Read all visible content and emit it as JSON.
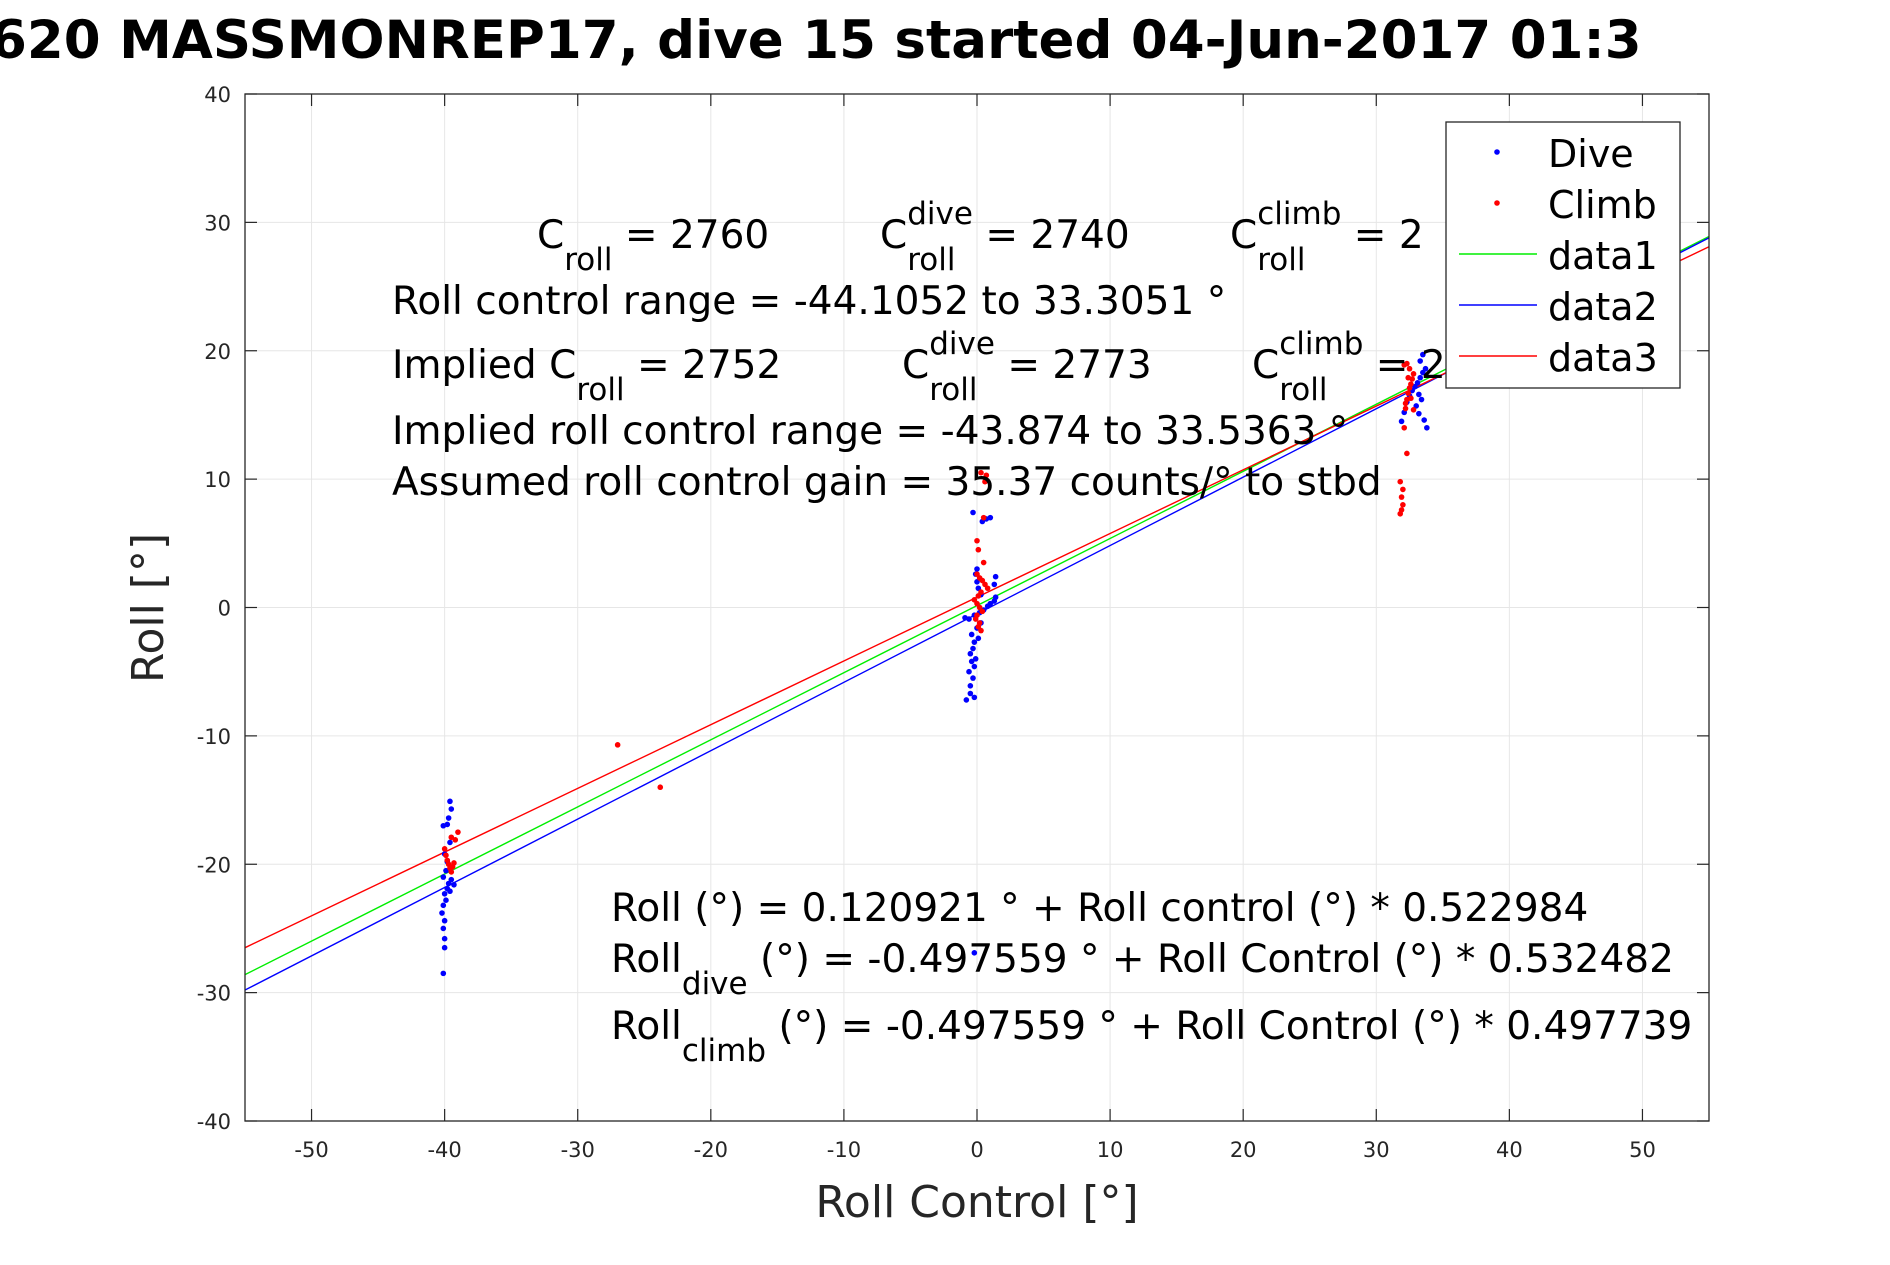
{
  "chart_data": {
    "type": "scatter",
    "title": "620 MASSMONREP17, dive 15 started 04-Jun-2017 01:3",
    "xlabel": "Roll Control [°]",
    "ylabel": "Roll [°]",
    "xlim": [
      -55,
      55
    ],
    "ylim": [
      -40,
      40
    ],
    "xticks": [
      -50,
      -40,
      -30,
      -20,
      -10,
      0,
      10,
      20,
      30,
      40,
      50
    ],
    "yticks": [
      -40,
      -30,
      -20,
      -10,
      0,
      10,
      20,
      30,
      40
    ],
    "grid": true,
    "legend_position": "top-right",
    "colors": {
      "dive": "#0000ff",
      "climb": "#ff0000",
      "data1": "#00ee00",
      "data2": "#0000ff",
      "data3": "#ff0000"
    },
    "series": [
      {
        "name": "Dive",
        "kind": "points",
        "points": [
          [
            -40.1,
            -28.5
          ],
          [
            -40.0,
            -26.5
          ],
          [
            -40.0,
            -25.8
          ],
          [
            -40.1,
            -25.0
          ],
          [
            -40.0,
            -24.4
          ],
          [
            -40.2,
            -23.8
          ],
          [
            -40.1,
            -23.2
          ],
          [
            -39.9,
            -22.8
          ],
          [
            -40.0,
            -22.3
          ],
          [
            -39.8,
            -21.9
          ],
          [
            -39.7,
            -21.5
          ],
          [
            -39.5,
            -21.2
          ],
          [
            -39.3,
            -21.6
          ],
          [
            -39.6,
            -22.1
          ],
          [
            -40.1,
            -21.0
          ],
          [
            -39.9,
            -20.5
          ],
          [
            -39.8,
            -19.8
          ],
          [
            -40.0,
            -19.2
          ],
          [
            -39.6,
            -18.3
          ],
          [
            -40.1,
            -17.0
          ],
          [
            -39.8,
            -16.9
          ],
          [
            -39.7,
            -16.4
          ],
          [
            -39.5,
            -15.7
          ],
          [
            -39.6,
            -15.1
          ],
          [
            -0.8,
            -7.2
          ],
          [
            -0.5,
            -6.7
          ],
          [
            -0.2,
            -7.0
          ],
          [
            -0.5,
            -6.1
          ],
          [
            -0.3,
            -5.5
          ],
          [
            -0.6,
            -5.0
          ],
          [
            -0.2,
            -4.6
          ],
          [
            -0.4,
            -4.2
          ],
          [
            -0.1,
            -4.0
          ],
          [
            -0.5,
            -3.6
          ],
          [
            -0.3,
            -3.2
          ],
          [
            -0.2,
            -2.7
          ],
          [
            0.1,
            -2.4
          ],
          [
            -0.4,
            -2.1
          ],
          [
            0.0,
            -1.6
          ],
          [
            0.3,
            -1.2
          ],
          [
            -0.6,
            -0.9
          ],
          [
            -0.9,
            -0.8
          ],
          [
            -0.2,
            -0.6
          ],
          [
            0.2,
            -0.4
          ],
          [
            0.5,
            -0.2
          ],
          [
            0.8,
            0.1
          ],
          [
            1.0,
            0.3
          ],
          [
            1.3,
            0.5
          ],
          [
            1.4,
            0.8
          ],
          [
            1.3,
            1.8
          ],
          [
            1.4,
            2.4
          ],
          [
            0.3,
            1.0
          ],
          [
            0.1,
            1.5
          ],
          [
            0.0,
            2.0
          ],
          [
            -0.1,
            2.6
          ],
          [
            0.0,
            3.0
          ],
          [
            0.4,
            6.7
          ],
          [
            0.7,
            6.9
          ],
          [
            1.0,
            7.0
          ],
          [
            -0.3,
            7.4
          ],
          [
            -0.2,
            -26.9
          ],
          [
            31.9,
            14.5
          ],
          [
            32.1,
            15.2
          ],
          [
            32.3,
            16.0
          ],
          [
            32.5,
            16.5
          ],
          [
            32.7,
            16.9
          ],
          [
            32.9,
            17.2
          ],
          [
            33.1,
            17.5
          ],
          [
            33.3,
            17.9
          ],
          [
            33.5,
            18.3
          ],
          [
            33.7,
            18.6
          ],
          [
            33.2,
            16.6
          ],
          [
            33.4,
            16.2
          ],
          [
            33.0,
            15.7
          ],
          [
            33.2,
            15.1
          ],
          [
            33.6,
            14.6
          ],
          [
            33.8,
            14.0
          ],
          [
            33.3,
            19.2
          ],
          [
            33.5,
            19.7
          ]
        ]
      },
      {
        "name": "Climb",
        "kind": "points",
        "points": [
          [
            -40.0,
            -18.8
          ],
          [
            -39.9,
            -19.3
          ],
          [
            -39.8,
            -19.7
          ],
          [
            -39.7,
            -20.0
          ],
          [
            -39.6,
            -20.3
          ],
          [
            -39.5,
            -20.6
          ],
          [
            -39.4,
            -20.2
          ],
          [
            -39.3,
            -19.9
          ],
          [
            -39.2,
            -18.1
          ],
          [
            -39.0,
            -17.5
          ],
          [
            -39.5,
            -17.9
          ],
          [
            -27.0,
            -10.7
          ],
          [
            -23.8,
            -14.0
          ],
          [
            0.0,
            2.6
          ],
          [
            0.2,
            2.3
          ],
          [
            0.4,
            2.1
          ],
          [
            0.6,
            1.8
          ],
          [
            0.8,
            1.5
          ],
          [
            0.3,
            1.2
          ],
          [
            0.1,
            0.9
          ],
          [
            -0.2,
            0.6
          ],
          [
            0.0,
            0.3
          ],
          [
            0.2,
            0.0
          ],
          [
            0.4,
            -0.3
          ],
          [
            0.0,
            -0.6
          ],
          [
            -0.1,
            -0.9
          ],
          [
            0.2,
            -1.2
          ],
          [
            0.1,
            -1.5
          ],
          [
            0.3,
            -1.8
          ],
          [
            0.0,
            5.2
          ],
          [
            0.5,
            7.0
          ],
          [
            0.6,
            9.8
          ],
          [
            0.7,
            10.3
          ],
          [
            0.3,
            10.5
          ],
          [
            0.1,
            4.5
          ],
          [
            0.5,
            3.5
          ],
          [
            31.8,
            7.3
          ],
          [
            31.9,
            7.6
          ],
          [
            32.0,
            8.0
          ],
          [
            31.9,
            8.6
          ],
          [
            32.0,
            9.2
          ],
          [
            31.8,
            9.8
          ],
          [
            32.3,
            12.0
          ],
          [
            32.1,
            14.0
          ],
          [
            32.2,
            15.5
          ],
          [
            32.3,
            16.2
          ],
          [
            32.4,
            16.7
          ],
          [
            32.5,
            17.1
          ],
          [
            32.6,
            17.4
          ],
          [
            32.7,
            17.8
          ],
          [
            32.8,
            18.2
          ],
          [
            32.5,
            18.6
          ],
          [
            32.3,
            19.0
          ],
          [
            32.1,
            18.9
          ],
          [
            32.4,
            17.9
          ],
          [
            32.6,
            16.3
          ],
          [
            32.2,
            15.9
          ],
          [
            32.8,
            15.4
          ]
        ]
      },
      {
        "name": "data1",
        "kind": "line",
        "x": [
          -55,
          55
        ],
        "y": [
          -28.6,
          28.9
        ]
      },
      {
        "name": "data2",
        "kind": "line",
        "x": [
          -55,
          55
        ],
        "y": [
          -29.8,
          28.8
        ]
      },
      {
        "name": "data3",
        "kind": "line",
        "x": [
          -55,
          55
        ],
        "y": [
          -26.5,
          28.1
        ]
      }
    ],
    "annotations": [
      {
        "base": "C",
        "sub": "roll",
        "sup": "",
        "rest": " = 2760"
      },
      {
        "base": "C",
        "sub": "roll",
        "sup": "dive",
        "rest": " = 2740"
      },
      {
        "base": "C",
        "sub": "roll",
        "sup": "climb",
        "rest": " = 2"
      },
      {
        "text": "Roll control range = -44.1052 to 33.3051 °"
      },
      {
        "base": "Implied C",
        "sub": "roll",
        "sup": "",
        "rest": " = 2752"
      },
      {
        "base": "C",
        "sub": "roll",
        "sup": "dive",
        "rest": " = 2773"
      },
      {
        "base": "C",
        "sub": "roll",
        "sup": "climb",
        "rest": " = 2"
      },
      {
        "text": "Implied roll control range = -43.874 to 33.5363 °"
      },
      {
        "text": "Assumed roll control gain = 35.37 counts/° to stbd"
      },
      {
        "text": "Roll (°) = 0.120921 ° + Roll control (°) * 0.522984"
      },
      {
        "base": "Roll",
        "sub": "dive",
        "sup": "",
        "rest": " (°) = -0.497559 ° + Roll Control (°) * 0.532482"
      },
      {
        "base": "Roll",
        "sub": "climb",
        "sup": "",
        "rest": " (°) = -0.497559 ° + Roll Control (°) * 0.497739"
      }
    ]
  }
}
